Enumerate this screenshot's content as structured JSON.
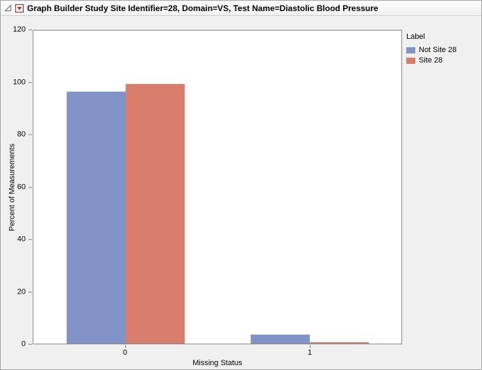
{
  "window": {
    "title_bar": {
      "title": "Graph Builder Study Site Identifier=28, Domain=VS, Test Name=Diastolic Blood Pressure"
    }
  },
  "chart_data": {
    "type": "bar",
    "title": "",
    "xlabel": "Missing Status",
    "ylabel": "Percent of Measurements",
    "categories": [
      "0",
      "1"
    ],
    "series": [
      {
        "name": "Not Site 28",
        "color": "#8193C7",
        "values": [
          96.5,
          3.5
        ]
      },
      {
        "name": "Site 28",
        "color": "#D97D6D",
        "values": [
          99.5,
          0.5
        ]
      }
    ],
    "ylim": [
      0,
      120
    ],
    "yticks": [
      0,
      20,
      40,
      60,
      80,
      100,
      120
    ],
    "legend": {
      "title": "Label",
      "position": "right"
    },
    "grid": false,
    "plot_background": "#ffffff",
    "window_background": "#f0f0f0"
  }
}
